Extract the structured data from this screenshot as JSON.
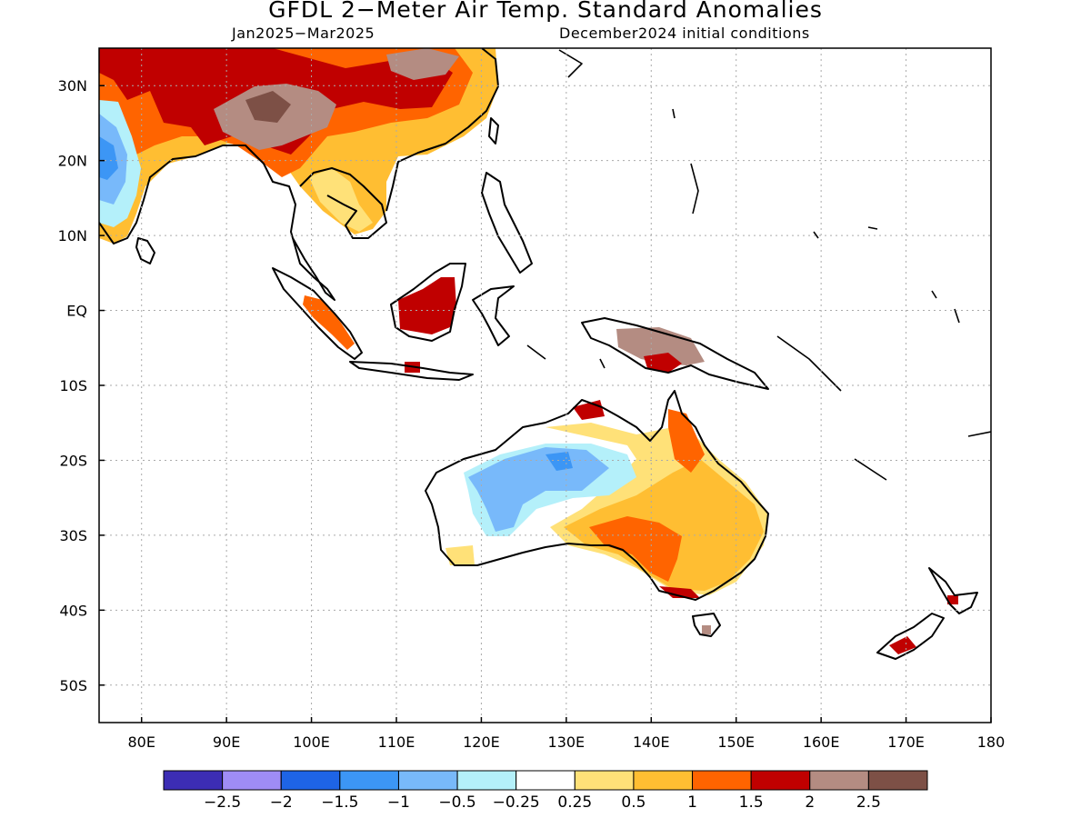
{
  "title": "GFDL 2−Meter Air Temp. Standard Anomalies",
  "period": "Jan2025−Mar2025",
  "init": "December2024 initial conditions",
  "map": {
    "lon_range": [
      75,
      180
    ],
    "lat_range": [
      -55,
      35
    ],
    "lon_ticks": [
      {
        "v": 80,
        "label": "80E"
      },
      {
        "v": 90,
        "label": "90E"
      },
      {
        "v": 100,
        "label": "100E"
      },
      {
        "v": 110,
        "label": "110E"
      },
      {
        "v": 120,
        "label": "120E"
      },
      {
        "v": 130,
        "label": "130E"
      },
      {
        "v": 140,
        "label": "140E"
      },
      {
        "v": 150,
        "label": "150E"
      },
      {
        "v": 160,
        "label": "160E"
      },
      {
        "v": 170,
        "label": "170E"
      },
      {
        "v": 180,
        "label": "180"
      }
    ],
    "lat_ticks": [
      {
        "v": 30,
        "label": "30N"
      },
      {
        "v": 20,
        "label": "20N"
      },
      {
        "v": 10,
        "label": "10N"
      },
      {
        "v": 0,
        "label": "EQ"
      },
      {
        "v": -10,
        "label": "10S"
      },
      {
        "v": -20,
        "label": "20S"
      },
      {
        "v": -30,
        "label": "30S"
      },
      {
        "v": -40,
        "label": "40S"
      },
      {
        "v": -50,
        "label": "50S"
      }
    ],
    "grid": true
  },
  "colorbar": {
    "colors": [
      "#3c2db4",
      "#9f8cf5",
      "#1e64e6",
      "#3c96f5",
      "#78b9fa",
      "#b4f0fa",
      "#ffffff",
      "#ffe178",
      "#ffbe32",
      "#ff6400",
      "#c00000",
      "#b48c82",
      "#7d5046"
    ],
    "labels": [
      "−2.5",
      "−2",
      "−1.5",
      "−1",
      "−0.5",
      "−0.25",
      "0.25",
      "0.5",
      "1",
      "1.5",
      "2",
      "2.5"
    ]
  }
}
